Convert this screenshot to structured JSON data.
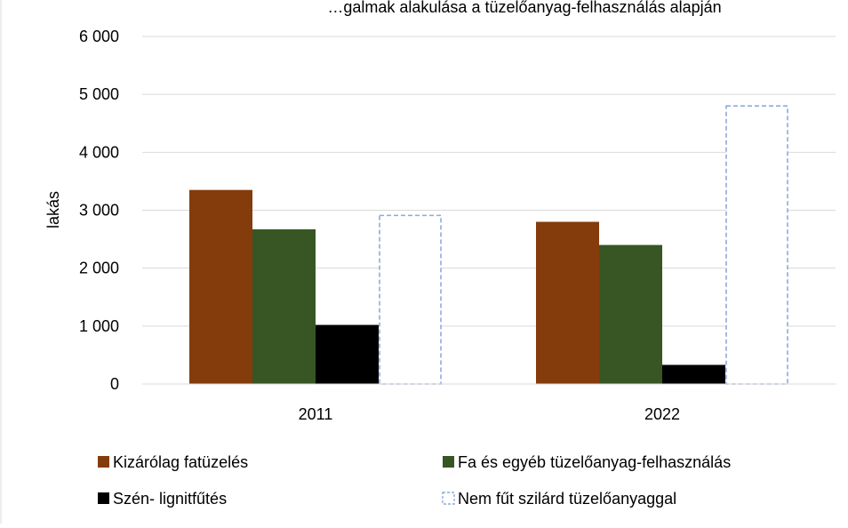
{
  "chart_data": {
    "type": "bar",
    "title": "…galmak alakulása a tüzelőanyag-felhasználás alapján",
    "categories": [
      "2011",
      "2022"
    ],
    "ylabel": "lakás",
    "ylim": [
      0,
      6000
    ],
    "yticks": [
      0,
      1000,
      2000,
      3000,
      4000,
      5000,
      6000
    ],
    "ytick_labels": [
      "0",
      "1 000",
      "2 000",
      "3 000",
      "4 000",
      "5 000",
      "6 000"
    ],
    "grid": true,
    "legend_position": "bottom",
    "series": [
      {
        "name": "Kizárólag fatüzelés",
        "values": [
          3350,
          2800
        ],
        "color": "#843C0C",
        "style": "solid"
      },
      {
        "name": "Fa és egyéb tüzelőanyag-felhasználás",
        "values": [
          2670,
          2400
        ],
        "color": "#375623",
        "style": "solid"
      },
      {
        "name": "Szén- lignitfűtés",
        "values": [
          1020,
          330
        ],
        "color": "#000000",
        "style": "solid"
      },
      {
        "name": "Nem fűt szilárd tüzelőanyaggal",
        "values": [
          2910,
          4800
        ],
        "color": "#8FAADC",
        "style": "dashed"
      }
    ]
  }
}
